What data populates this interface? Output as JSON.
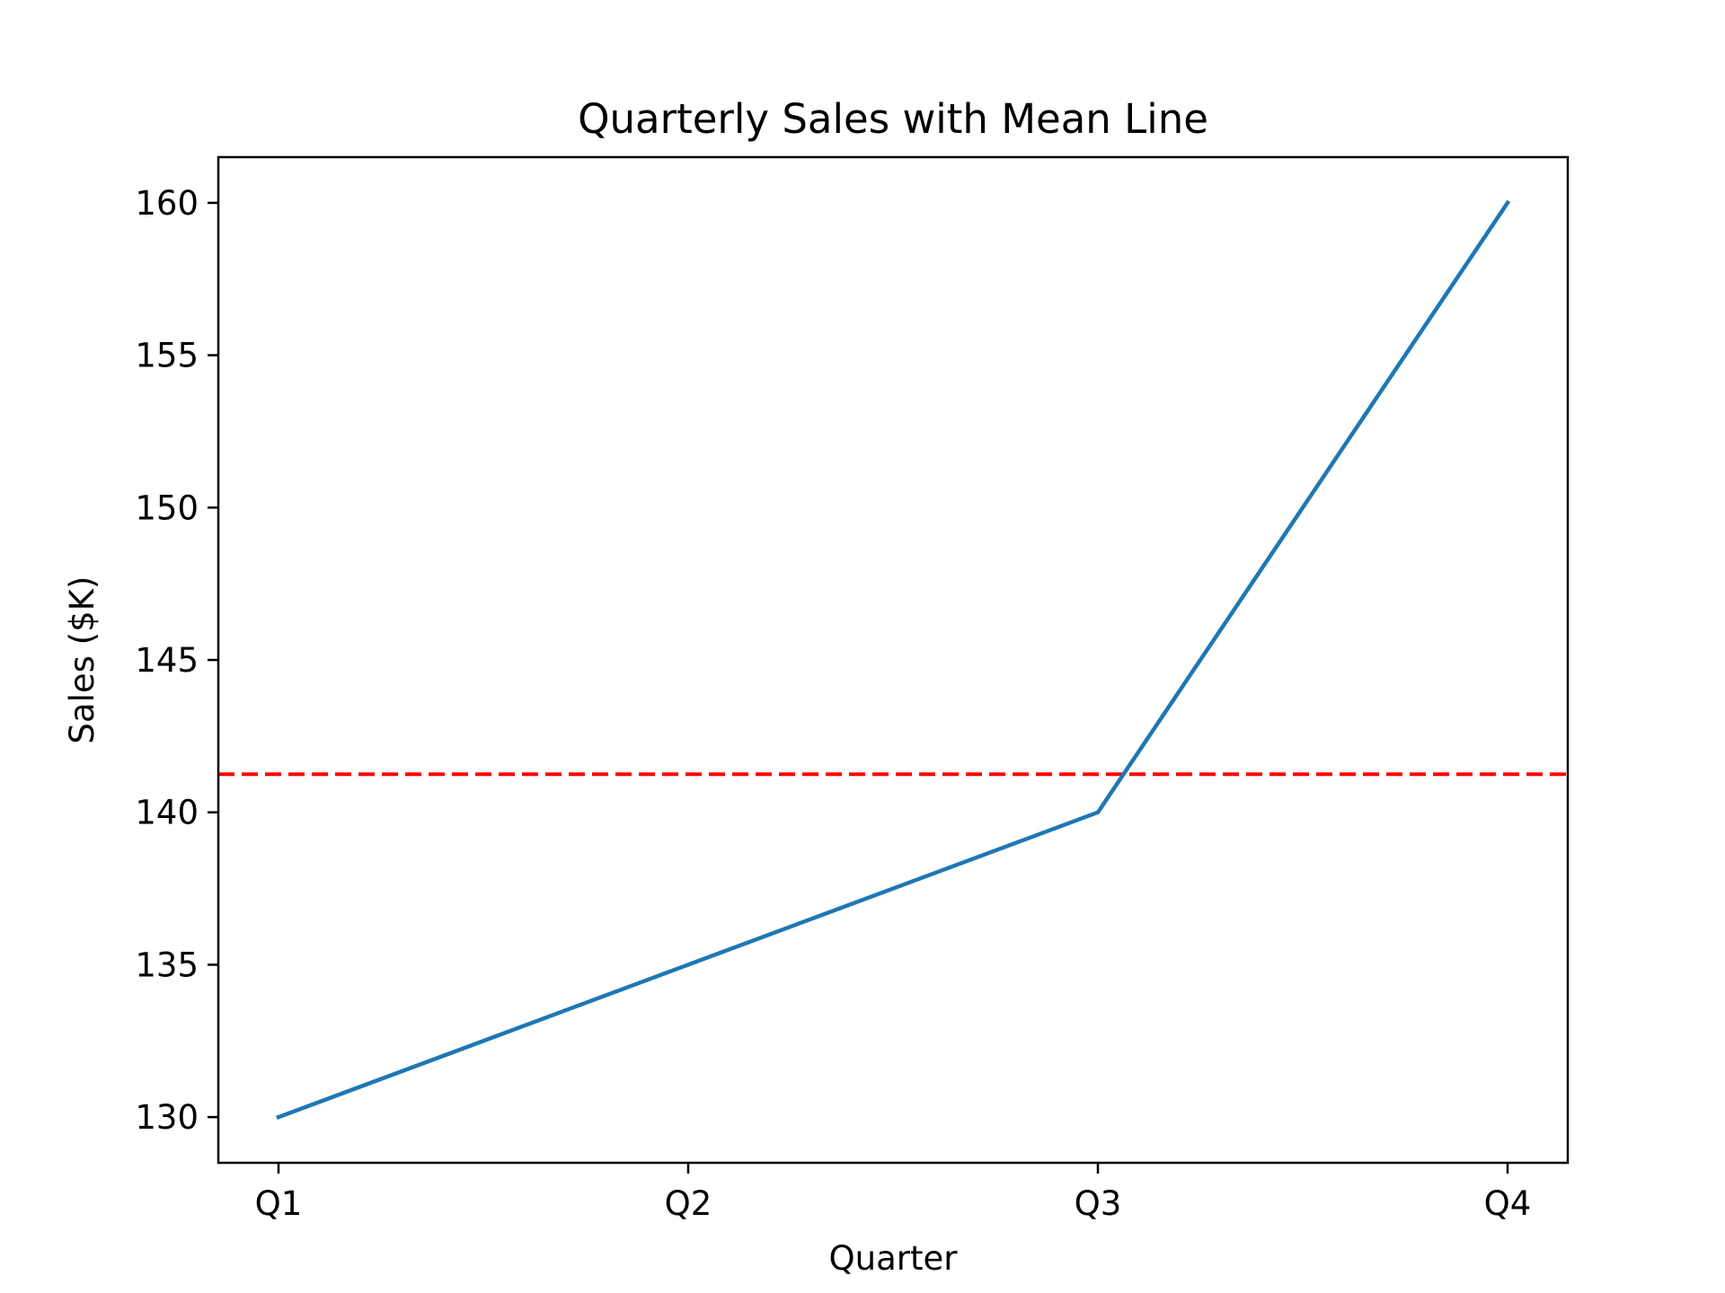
{
  "chart_data": {
    "type": "line",
    "title": "Quarterly Sales with Mean Line",
    "xlabel": "Quarter",
    "ylabel": "Sales ($K)",
    "categories": [
      "Q1",
      "Q2",
      "Q3",
      "Q4"
    ],
    "series": [
      {
        "values": [
          130,
          135,
          140,
          160
        ],
        "color": "#1f77b4",
        "style": "solid"
      }
    ],
    "reference_lines": [
      {
        "orientation": "horizontal",
        "value": 141.25,
        "color": "#ff0000",
        "style": "dashed"
      }
    ],
    "ylim": [
      128.5,
      161.5
    ],
    "yticks": [
      130,
      135,
      140,
      145,
      150,
      155,
      160
    ],
    "grid": false,
    "legend": "none"
  }
}
